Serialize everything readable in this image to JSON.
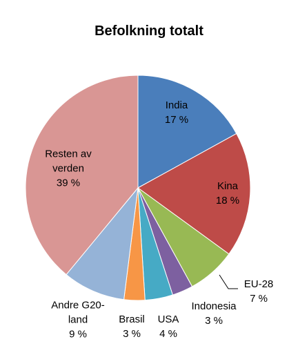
{
  "chart_data": {
    "type": "pie",
    "title": "Befolkning totalt",
    "categories": [
      "India",
      "Kina",
      "EU-28",
      "Indonesia",
      "USA",
      "Brasil",
      "Andre G20-land",
      "Resten av verden"
    ],
    "values": [
      17,
      18,
      7,
      3,
      4,
      3,
      9,
      39
    ],
    "value_labels": [
      "17 %",
      "18 %",
      "7 %",
      "3 %",
      "4 %",
      "3 %",
      "9 %",
      "39 %"
    ],
    "colors": [
      "#4a7ebb",
      "#be4b48",
      "#98b954",
      "#7d60a0",
      "#46aac5",
      "#f79646",
      "#95b3d7",
      "#d99694"
    ]
  }
}
